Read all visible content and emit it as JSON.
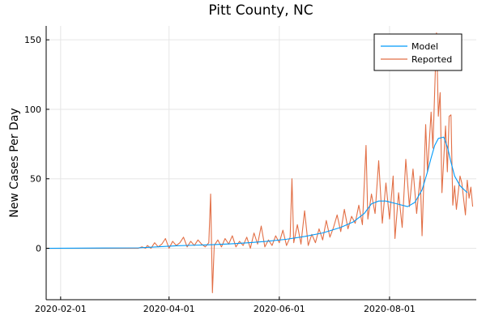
{
  "chart_data": {
    "type": "line",
    "title": "Pitt County, NC",
    "xlabel": "",
    "ylabel": "New Cases Per Day",
    "x_range": [
      "2020-01-24",
      "2020-09-18"
    ],
    "ylim": [
      -37,
      160
    ],
    "xticks": [
      {
        "date": "2020-02-01",
        "label": "2020-02-01"
      },
      {
        "date": "2020-04-01",
        "label": "2020-04-01"
      },
      {
        "date": "2020-06-01",
        "label": "2020-06-01"
      },
      {
        "date": "2020-08-01",
        "label": "2020-08-01"
      }
    ],
    "yticks": [
      {
        "value": 0,
        "label": "0"
      },
      {
        "value": 50,
        "label": "50"
      },
      {
        "value": 100,
        "label": "100"
      },
      {
        "value": 150,
        "label": "150"
      }
    ],
    "grid": true,
    "legend_position": "top-right",
    "series": [
      {
        "name": "Model",
        "color": "#009AFA",
        "points": [
          [
            "2020-01-24",
            0
          ],
          [
            "2020-03-15",
            0.3
          ],
          [
            "2020-03-25",
            1
          ],
          [
            "2020-04-05",
            1.8
          ],
          [
            "2020-04-15",
            2.2
          ],
          [
            "2020-04-25",
            2.6
          ],
          [
            "2020-05-05",
            3.2
          ],
          [
            "2020-05-15",
            4
          ],
          [
            "2020-05-25",
            5
          ],
          [
            "2020-06-05",
            6.5
          ],
          [
            "2020-06-15",
            8.5
          ],
          [
            "2020-06-25",
            11
          ],
          [
            "2020-07-05",
            15
          ],
          [
            "2020-07-12",
            19
          ],
          [
            "2020-07-18",
            25
          ],
          [
            "2020-07-22",
            32
          ],
          [
            "2020-07-26",
            34
          ],
          [
            "2020-07-30",
            34
          ],
          [
            "2020-08-05",
            32
          ],
          [
            "2020-08-11",
            30
          ],
          [
            "2020-08-15",
            33
          ],
          [
            "2020-08-19",
            42
          ],
          [
            "2020-08-22",
            55
          ],
          [
            "2020-08-24",
            65
          ],
          [
            "2020-08-26",
            74
          ],
          [
            "2020-08-28",
            79
          ],
          [
            "2020-08-31",
            80
          ],
          [
            "2020-09-02",
            73
          ],
          [
            "2020-09-04",
            62
          ],
          [
            "2020-09-06",
            52
          ],
          [
            "2020-09-09",
            45
          ],
          [
            "2020-09-13",
            40
          ]
        ]
      },
      {
        "name": "Reported",
        "color": "#E26F46",
        "points": [
          [
            "2020-01-24",
            0
          ],
          [
            "2020-03-15",
            0
          ],
          [
            "2020-03-17",
            1
          ],
          [
            "2020-03-19",
            0
          ],
          [
            "2020-03-20",
            2
          ],
          [
            "2020-03-22",
            0
          ],
          [
            "2020-03-24",
            4
          ],
          [
            "2020-03-26",
            1
          ],
          [
            "2020-03-28",
            3
          ],
          [
            "2020-03-30",
            7
          ],
          [
            "2020-04-01",
            0
          ],
          [
            "2020-04-03",
            5
          ],
          [
            "2020-04-05",
            2
          ],
          [
            "2020-04-07",
            4
          ],
          [
            "2020-04-09",
            8
          ],
          [
            "2020-04-11",
            1
          ],
          [
            "2020-04-13",
            5
          ],
          [
            "2020-04-15",
            2
          ],
          [
            "2020-04-17",
            6
          ],
          [
            "2020-04-19",
            3
          ],
          [
            "2020-04-21",
            1
          ],
          [
            "2020-04-23",
            4
          ],
          [
            "2020-04-24",
            39
          ],
          [
            "2020-04-25",
            -32
          ],
          [
            "2020-04-26",
            2
          ],
          [
            "2020-04-28",
            6
          ],
          [
            "2020-04-30",
            1
          ],
          [
            "2020-05-02",
            7
          ],
          [
            "2020-05-04",
            3
          ],
          [
            "2020-05-06",
            9
          ],
          [
            "2020-05-08",
            1
          ],
          [
            "2020-05-10",
            5
          ],
          [
            "2020-05-12",
            2
          ],
          [
            "2020-05-14",
            8
          ],
          [
            "2020-05-16",
            0
          ],
          [
            "2020-05-18",
            11
          ],
          [
            "2020-05-20",
            3
          ],
          [
            "2020-05-22",
            16
          ],
          [
            "2020-05-24",
            1
          ],
          [
            "2020-05-26",
            6
          ],
          [
            "2020-05-28",
            2
          ],
          [
            "2020-05-30",
            9
          ],
          [
            "2020-06-01",
            4
          ],
          [
            "2020-06-03",
            13
          ],
          [
            "2020-06-05",
            2
          ],
          [
            "2020-06-07",
            8
          ],
          [
            "2020-06-08",
            50
          ],
          [
            "2020-06-09",
            4
          ],
          [
            "2020-06-11",
            17
          ],
          [
            "2020-06-13",
            3
          ],
          [
            "2020-06-15",
            27
          ],
          [
            "2020-06-17",
            2
          ],
          [
            "2020-06-19",
            10
          ],
          [
            "2020-06-21",
            4
          ],
          [
            "2020-06-23",
            14
          ],
          [
            "2020-06-25",
            6
          ],
          [
            "2020-06-27",
            20
          ],
          [
            "2020-06-29",
            8
          ],
          [
            "2020-07-01",
            15
          ],
          [
            "2020-07-03",
            24
          ],
          [
            "2020-07-05",
            12
          ],
          [
            "2020-07-07",
            28
          ],
          [
            "2020-07-09",
            14
          ],
          [
            "2020-07-11",
            23
          ],
          [
            "2020-07-13",
            18
          ],
          [
            "2020-07-15",
            31
          ],
          [
            "2020-07-17",
            17
          ],
          [
            "2020-07-19",
            74
          ],
          [
            "2020-07-20",
            21
          ],
          [
            "2020-07-22",
            39
          ],
          [
            "2020-07-24",
            25
          ],
          [
            "2020-07-26",
            63
          ],
          [
            "2020-07-28",
            18
          ],
          [
            "2020-07-30",
            47
          ],
          [
            "2020-08-01",
            21
          ],
          [
            "2020-08-03",
            52
          ],
          [
            "2020-08-04",
            7
          ],
          [
            "2020-08-06",
            40
          ],
          [
            "2020-08-08",
            15
          ],
          [
            "2020-08-10",
            64
          ],
          [
            "2020-08-12",
            30
          ],
          [
            "2020-08-14",
            57
          ],
          [
            "2020-08-16",
            25
          ],
          [
            "2020-08-18",
            52
          ],
          [
            "2020-08-19",
            9
          ],
          [
            "2020-08-21",
            89
          ],
          [
            "2020-08-22",
            55
          ],
          [
            "2020-08-24",
            98
          ],
          [
            "2020-08-25",
            72
          ],
          [
            "2020-08-27",
            155
          ],
          [
            "2020-08-28",
            95
          ],
          [
            "2020-08-29",
            112
          ],
          [
            "2020-08-30",
            40
          ],
          [
            "2020-09-01",
            88
          ],
          [
            "2020-09-02",
            55
          ],
          [
            "2020-09-03",
            95
          ],
          [
            "2020-09-04",
            96
          ],
          [
            "2020-09-05",
            31
          ],
          [
            "2020-09-06",
            45
          ],
          [
            "2020-09-07",
            28
          ],
          [
            "2020-09-09",
            52
          ],
          [
            "2020-09-10",
            47
          ],
          [
            "2020-09-12",
            24
          ],
          [
            "2020-09-13",
            49
          ],
          [
            "2020-09-14",
            36
          ],
          [
            "2020-09-15",
            44
          ],
          [
            "2020-09-16",
            30
          ]
        ]
      }
    ]
  }
}
